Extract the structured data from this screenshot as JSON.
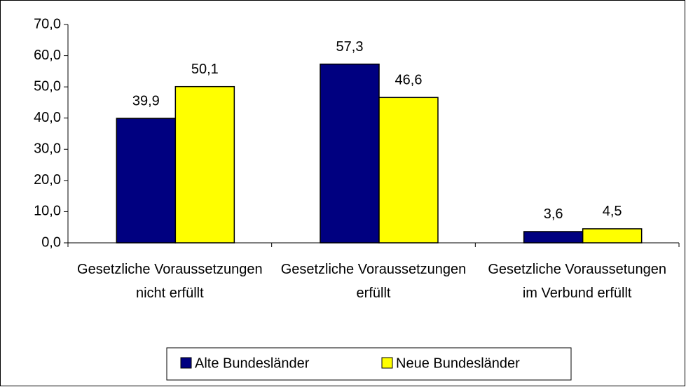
{
  "chart_data": {
    "type": "bar",
    "categories": [
      "Gesetzliche Voraussetzungen nicht erfüllt",
      "Gesetzliche Voraussetzungen erfüllt",
      "Gesetzliche Voraussetungen im Verbund erfüllt"
    ],
    "series": [
      {
        "name": "Alte Bundesländer",
        "color": "#000080",
        "values": [
          39.9,
          57.3,
          3.6
        ],
        "value_labels": [
          "39,9",
          "57,3",
          "3,6"
        ]
      },
      {
        "name": "Neue Bundesländer",
        "color": "#ffff00",
        "values": [
          50.1,
          46.6,
          4.5
        ],
        "value_labels": [
          "50,1",
          "46,6",
          "4,5"
        ]
      }
    ],
    "ylim": [
      0,
      70
    ],
    "yticks": [
      {
        "value": 0,
        "label": "0,0"
      },
      {
        "value": 10,
        "label": "10,0"
      },
      {
        "value": 20,
        "label": "20,0"
      },
      {
        "value": 30,
        "label": "30,0"
      },
      {
        "value": 40,
        "label": "40,0"
      },
      {
        "value": 50,
        "label": "50,0"
      },
      {
        "value": 60,
        "label": "60,0"
      },
      {
        "value": 70,
        "label": "70,0"
      }
    ],
    "legend": "bottom"
  }
}
